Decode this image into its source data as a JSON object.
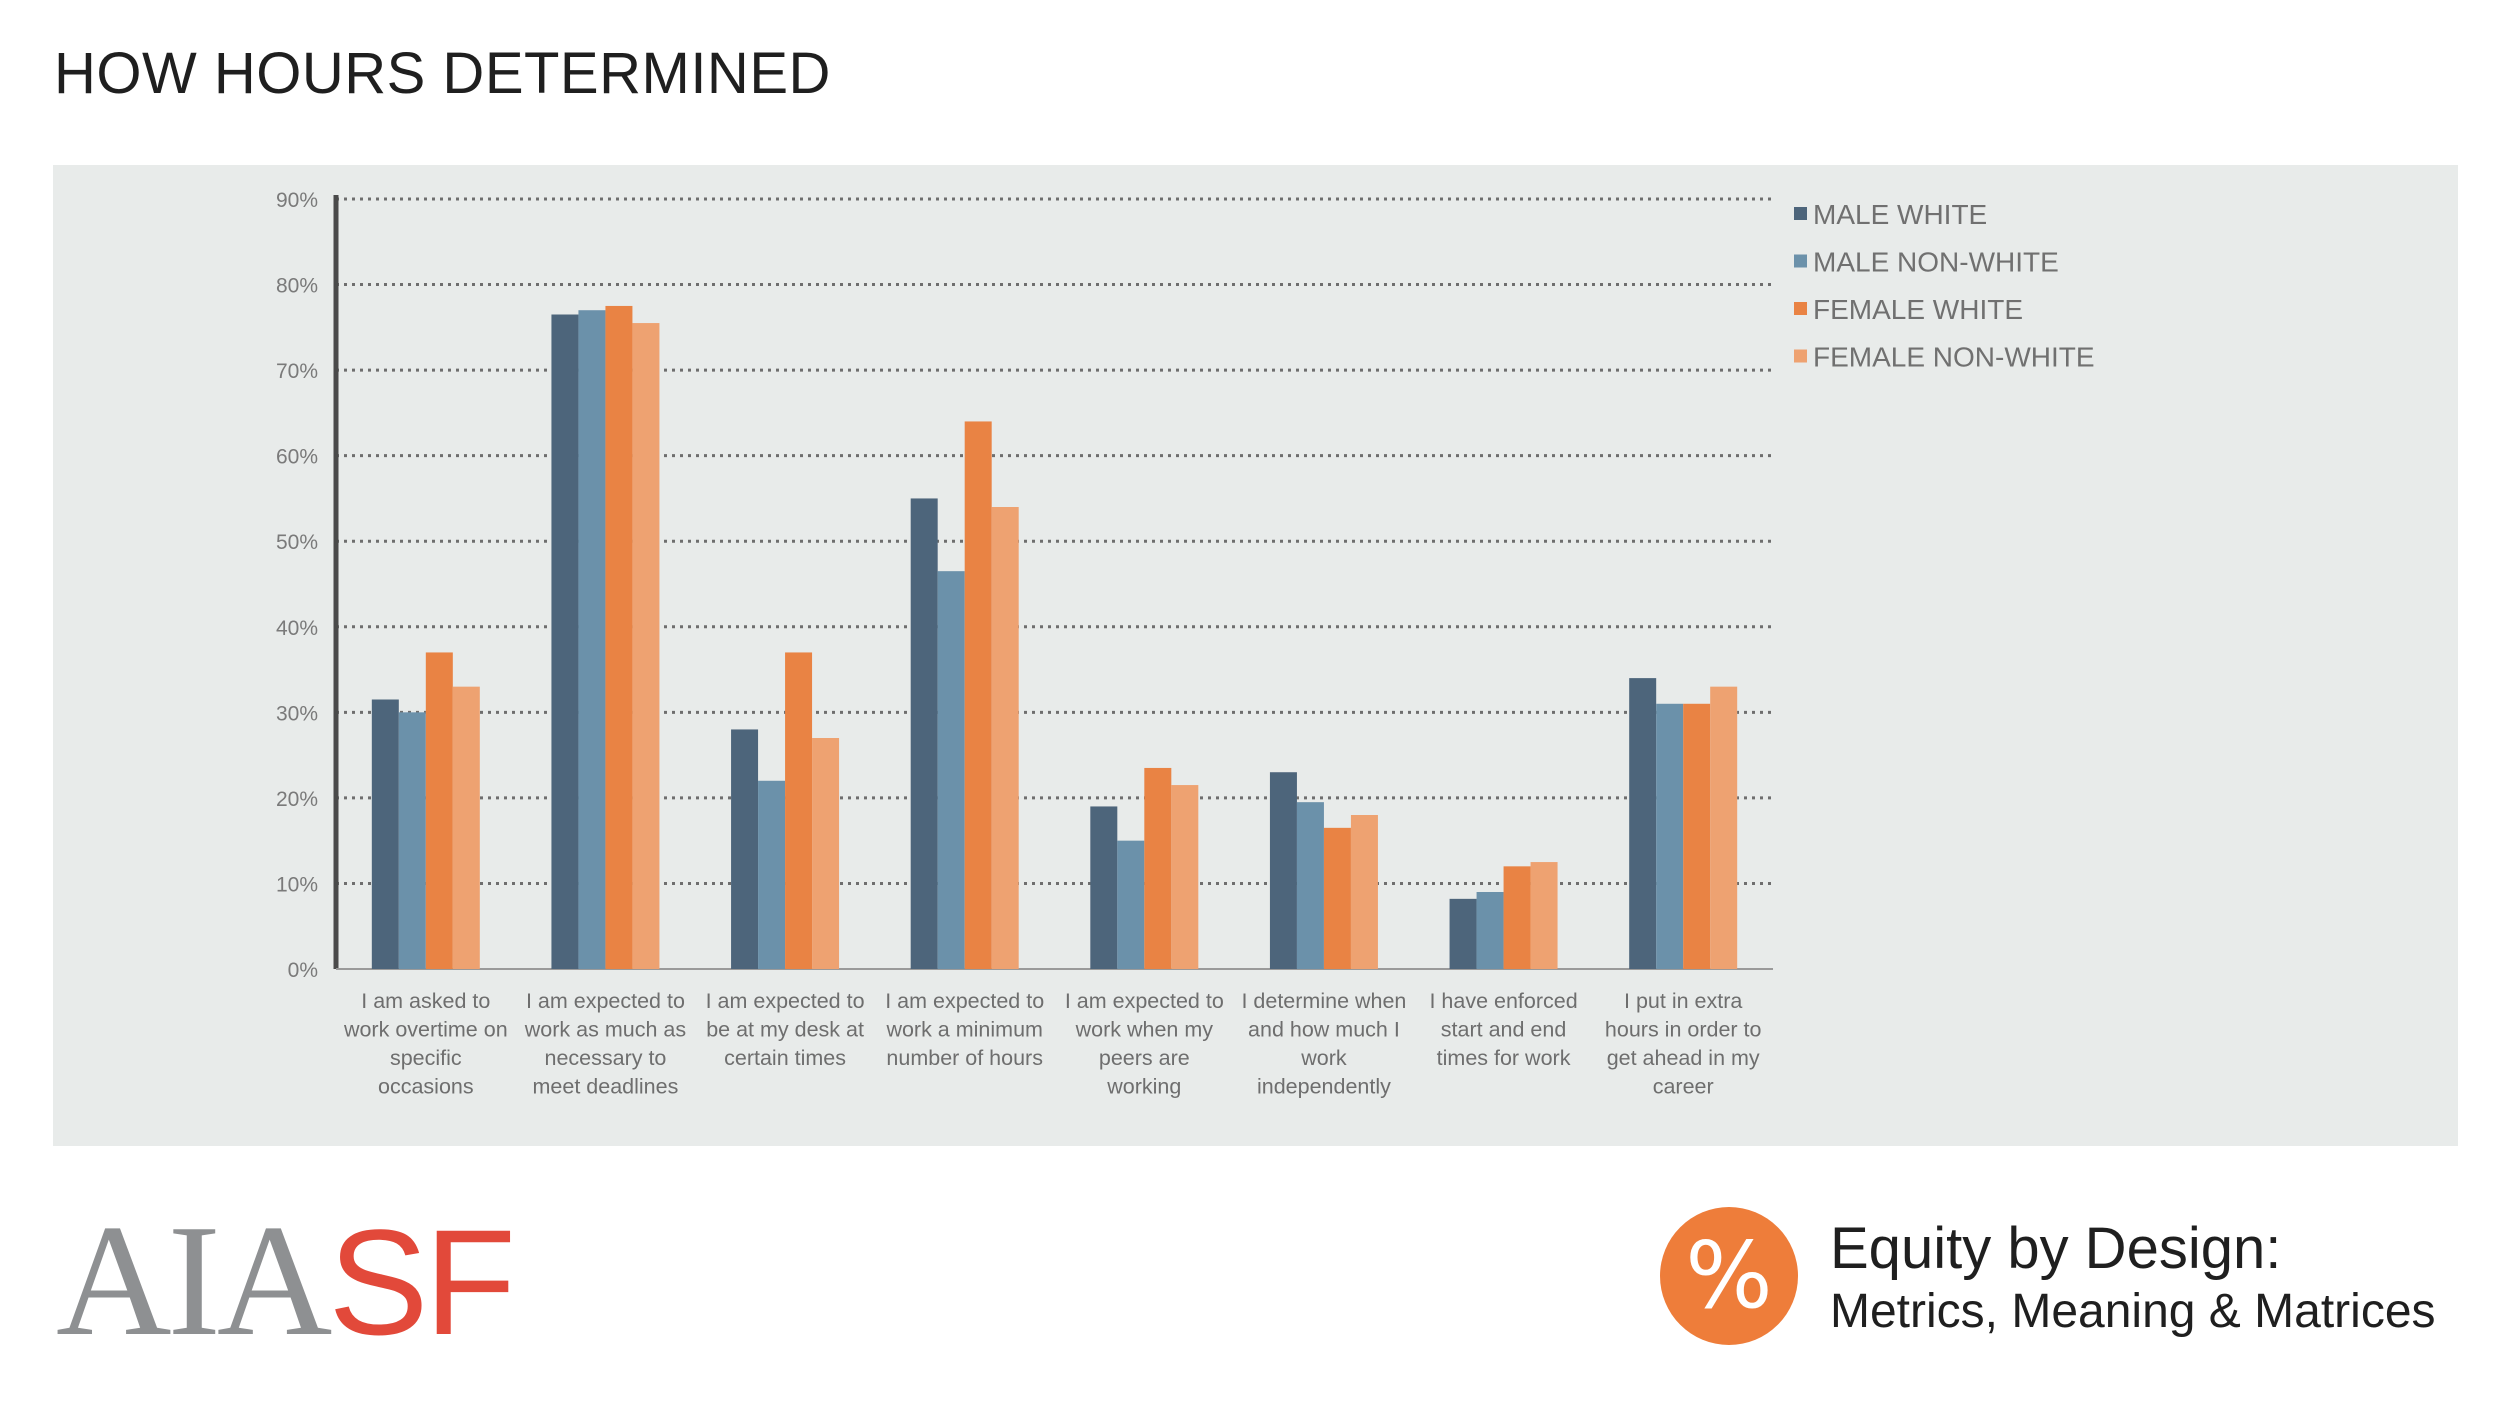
{
  "page": {
    "title": "HOW HOURS DETERMINED",
    "logo_left": "AIA",
    "logo_right": "SF",
    "badge_symbol": "%",
    "brand_title": "Equity by Design:",
    "brand_subtitle": "Metrics, Meaning & Matrices"
  },
  "colors": {
    "panel": "#e8ebea",
    "male_white": "#4d657b",
    "male_non_white": "#6b91aa",
    "female_white": "#e98344",
    "female_non_white": "#eea271",
    "accent_orange": "#ee7d3a",
    "logo_red": "#e2493a",
    "logo_gray": "#8e9092"
  },
  "chart_data": {
    "type": "bar",
    "title": "",
    "xlabel": "",
    "ylabel": "",
    "ylim": [
      0,
      90
    ],
    "yticks": [
      "0%",
      "10%",
      "20%",
      "30%",
      "40%",
      "50%",
      "60%",
      "70%",
      "80%",
      "90%"
    ],
    "grid": true,
    "legend_position": "top-right",
    "categories": [
      [
        "I am asked to",
        "work overtime on",
        "specific",
        "occasions"
      ],
      [
        "I am expected to",
        "work as much as",
        "necessary to",
        "meet deadlines"
      ],
      [
        "I am expected to",
        "be at my desk at",
        "certain times"
      ],
      [
        "I am expected to",
        "work a minimum",
        "number of hours"
      ],
      [
        "I am expected to",
        "work when my",
        "peers are",
        "working"
      ],
      [
        "I determine when",
        "and how much I",
        "work",
        "independently"
      ],
      [
        "I have enforced",
        "start and end",
        "times for work"
      ],
      [
        "I put in extra",
        "hours in order to",
        "get ahead in my",
        "career"
      ]
    ],
    "series": [
      {
        "name": "MALE WHITE",
        "values": [
          31.5,
          76.5,
          28,
          55,
          19,
          23,
          8.2,
          34
        ]
      },
      {
        "name": "MALE NON-WHITE",
        "values": [
          30,
          77,
          22,
          46.5,
          15,
          19.5,
          9,
          31
        ]
      },
      {
        "name": "FEMALE WHITE",
        "values": [
          37,
          77.5,
          37,
          64,
          23.5,
          16.5,
          12,
          31
        ]
      },
      {
        "name": "FEMALE NON-WHITE",
        "values": [
          33,
          75.5,
          27,
          54,
          21.5,
          18,
          12.5,
          33
        ]
      }
    ]
  }
}
